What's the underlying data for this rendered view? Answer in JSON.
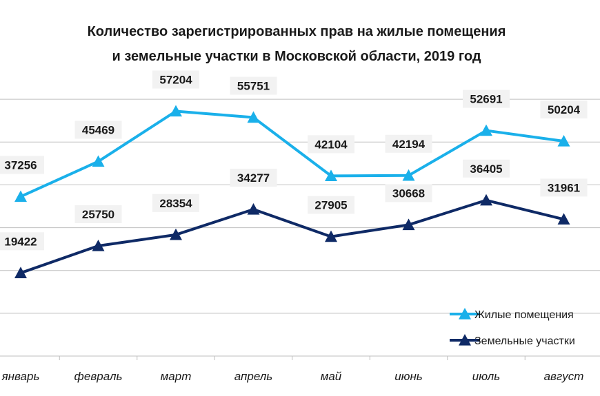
{
  "chart_data": {
    "type": "line",
    "title": [
      "Количество зарегистрированных прав на жилые помещения",
      "и земельные участки в Московской области, 2019 год"
    ],
    "categories": [
      "январь",
      "февраль",
      "март",
      "апрель",
      "май",
      "июнь",
      "июль",
      "август"
    ],
    "series": [
      {
        "name": "Жилые помещения",
        "color": "#1ab0ea",
        "values": [
          37256,
          45469,
          57204,
          55751,
          42104,
          42194,
          52691,
          50204
        ]
      },
      {
        "name": "Земельные участки",
        "color": "#0f2a66",
        "values": [
          19422,
          25750,
          28354,
          34277,
          27905,
          30668,
          36405,
          31961
        ]
      }
    ],
    "ylim": [
      0,
      70000
    ],
    "gridlines": true,
    "legend": "bottom-right",
    "marker": "triangle"
  }
}
